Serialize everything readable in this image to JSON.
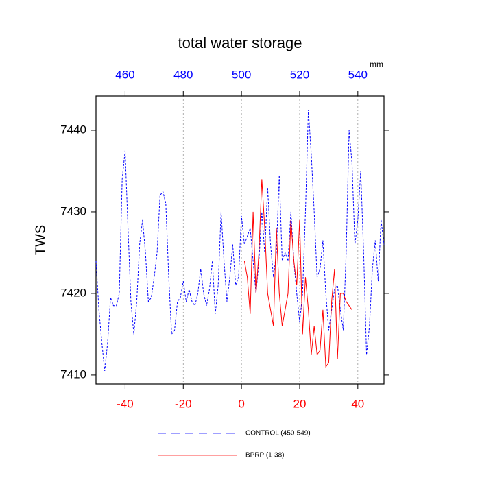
{
  "chart_data": {
    "type": "line",
    "title": "total water storage",
    "y_label": "TWS",
    "x2_unit": "mm",
    "xlim": [
      -50,
      49
    ],
    "xticks": [
      -40,
      -20,
      0,
      20,
      40
    ],
    "xtick_color": "#ff0000",
    "x2lim": [
      450,
      549
    ],
    "x2ticks": [
      460,
      480,
      500,
      520,
      540
    ],
    "x2tick_color": "#0000ff",
    "ylim": [
      7408.9,
      7444.2
    ],
    "yticks": [
      7410,
      7420,
      7430,
      7440
    ],
    "grid": true,
    "series": [
      {
        "name": "CONTROL (450-549)",
        "color": "#0000ff",
        "dashed": true,
        "axis": "x2",
        "x": [
          450,
          451,
          452,
          453,
          454,
          455,
          456,
          457,
          458,
          459,
          460,
          461,
          462,
          463,
          464,
          465,
          466,
          467,
          468,
          469,
          470,
          471,
          472,
          473,
          474,
          475,
          476,
          477,
          478,
          479,
          480,
          481,
          482,
          483,
          484,
          485,
          486,
          487,
          488,
          489,
          490,
          491,
          492,
          493,
          494,
          495,
          496,
          497,
          498,
          499,
          500,
          501,
          502,
          503,
          504,
          505,
          506,
          507,
          508,
          509,
          510,
          511,
          512,
          513,
          514,
          515,
          516,
          517,
          518,
          519,
          520,
          521,
          522,
          523,
          524,
          525,
          526,
          527,
          528,
          529,
          530,
          531,
          532,
          533,
          534,
          535,
          536,
          537,
          538,
          539,
          540,
          541,
          542,
          543,
          544,
          545,
          546,
          547,
          548,
          549
        ],
        "values": [
          7424,
          7418,
          7414,
          7410.5,
          7414,
          7419.5,
          7418.5,
          7418.5,
          7420,
          7434,
          7437.5,
          7428,
          7419,
          7415,
          7419,
          7426,
          7429,
          7425,
          7419,
          7419.5,
          7422,
          7425,
          7432,
          7432.5,
          7431,
          7422,
          7415,
          7415.5,
          7419,
          7419.5,
          7421.5,
          7419,
          7420.5,
          7419,
          7418.5,
          7420,
          7423,
          7420,
          7418.5,
          7420.5,
          7424,
          7417.5,
          7421,
          7430,
          7424,
          7419,
          7422,
          7426,
          7421,
          7422,
          7429.5,
          7426,
          7427,
          7428,
          7424,
          7420,
          7424,
          7430,
          7425,
          7433,
          7426,
          7422,
          7425,
          7434.5,
          7424,
          7425,
          7424,
          7430,
          7424,
          7420,
          7416.5,
          7420,
          7430,
          7442.5,
          7437,
          7430,
          7422,
          7423,
          7426.5,
          7420,
          7415.5,
          7418,
          7420.5,
          7421,
          7418,
          7415.5,
          7425,
          7440,
          7436,
          7426,
          7429,
          7435,
          7425,
          7412.5,
          7416,
          7423,
          7426.5,
          7421.5,
          7429,
          7426
        ]
      },
      {
        "name": "BPRP (1-38)",
        "color": "#ff0000",
        "dashed": false,
        "x": [
          1,
          2,
          3,
          4,
          5,
          6,
          7,
          8,
          9,
          10,
          11,
          12,
          13,
          14,
          15,
          16,
          17,
          18,
          19,
          20,
          21,
          22,
          23,
          24,
          25,
          26,
          27,
          28,
          29,
          30,
          31,
          32,
          33,
          34,
          35,
          36,
          37,
          38
        ],
        "values": [
          7424,
          7422,
          7417.5,
          7430,
          7420,
          7425,
          7434,
          7428,
          7420,
          7418,
          7416,
          7428,
          7420,
          7416,
          7418,
          7420,
          7429,
          7424,
          7421,
          7429,
          7415,
          7422,
          7418,
          7412.5,
          7416,
          7412.5,
          7413,
          7418,
          7411,
          7411.5,
          7419,
          7423,
          7412,
          7420,
          7420,
          7419,
          7418.5,
          7418
        ]
      }
    ]
  }
}
